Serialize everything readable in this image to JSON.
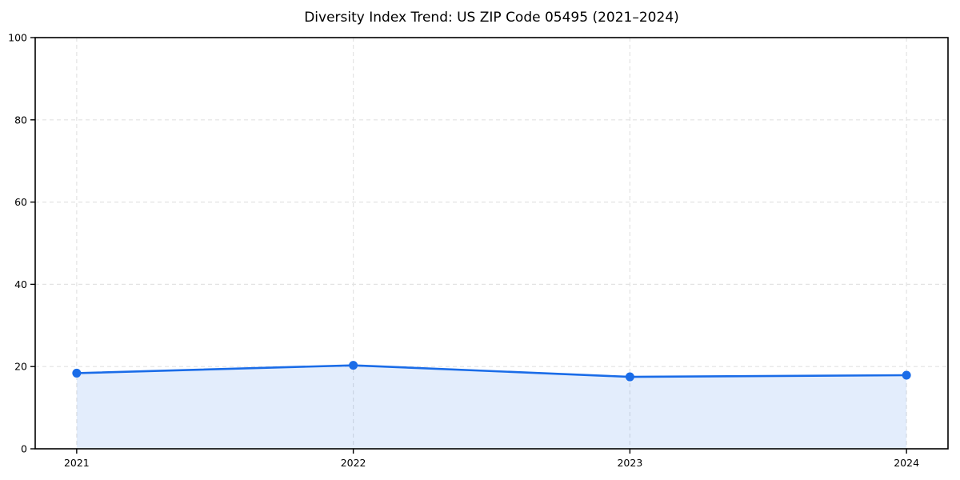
{
  "chart_data": {
    "type": "line",
    "title": "Diversity Index Trend: US ZIP Code 05495 (2021–2024)",
    "series": [
      {
        "name": "Diversity Index",
        "x": [
          2021,
          2022,
          2023,
          2024
        ],
        "values": [
          18.4,
          20.3,
          17.5,
          17.9
        ]
      }
    ],
    "xlabel": "",
    "ylabel": "",
    "xlim": [
      2020.85,
      2024.15
    ],
    "ylim": [
      0,
      100
    ],
    "xticks": [
      2021,
      2022,
      2023,
      2024
    ],
    "yticks": [
      0,
      20,
      40,
      60,
      80,
      100
    ],
    "grid": true,
    "grid_style": "dashed",
    "legend_position": "none",
    "area_fill": true,
    "colors": {
      "line": "#1a6ce8",
      "marker": "#1a6ce8",
      "fill": "#1a6ce8",
      "fill_opacity": 0.12,
      "grid": "#e3e3e3",
      "axis": "#000000",
      "background": "#ffffff"
    },
    "marker": "circle",
    "marker_radius": 5.5,
    "line_width": 2.6
  }
}
